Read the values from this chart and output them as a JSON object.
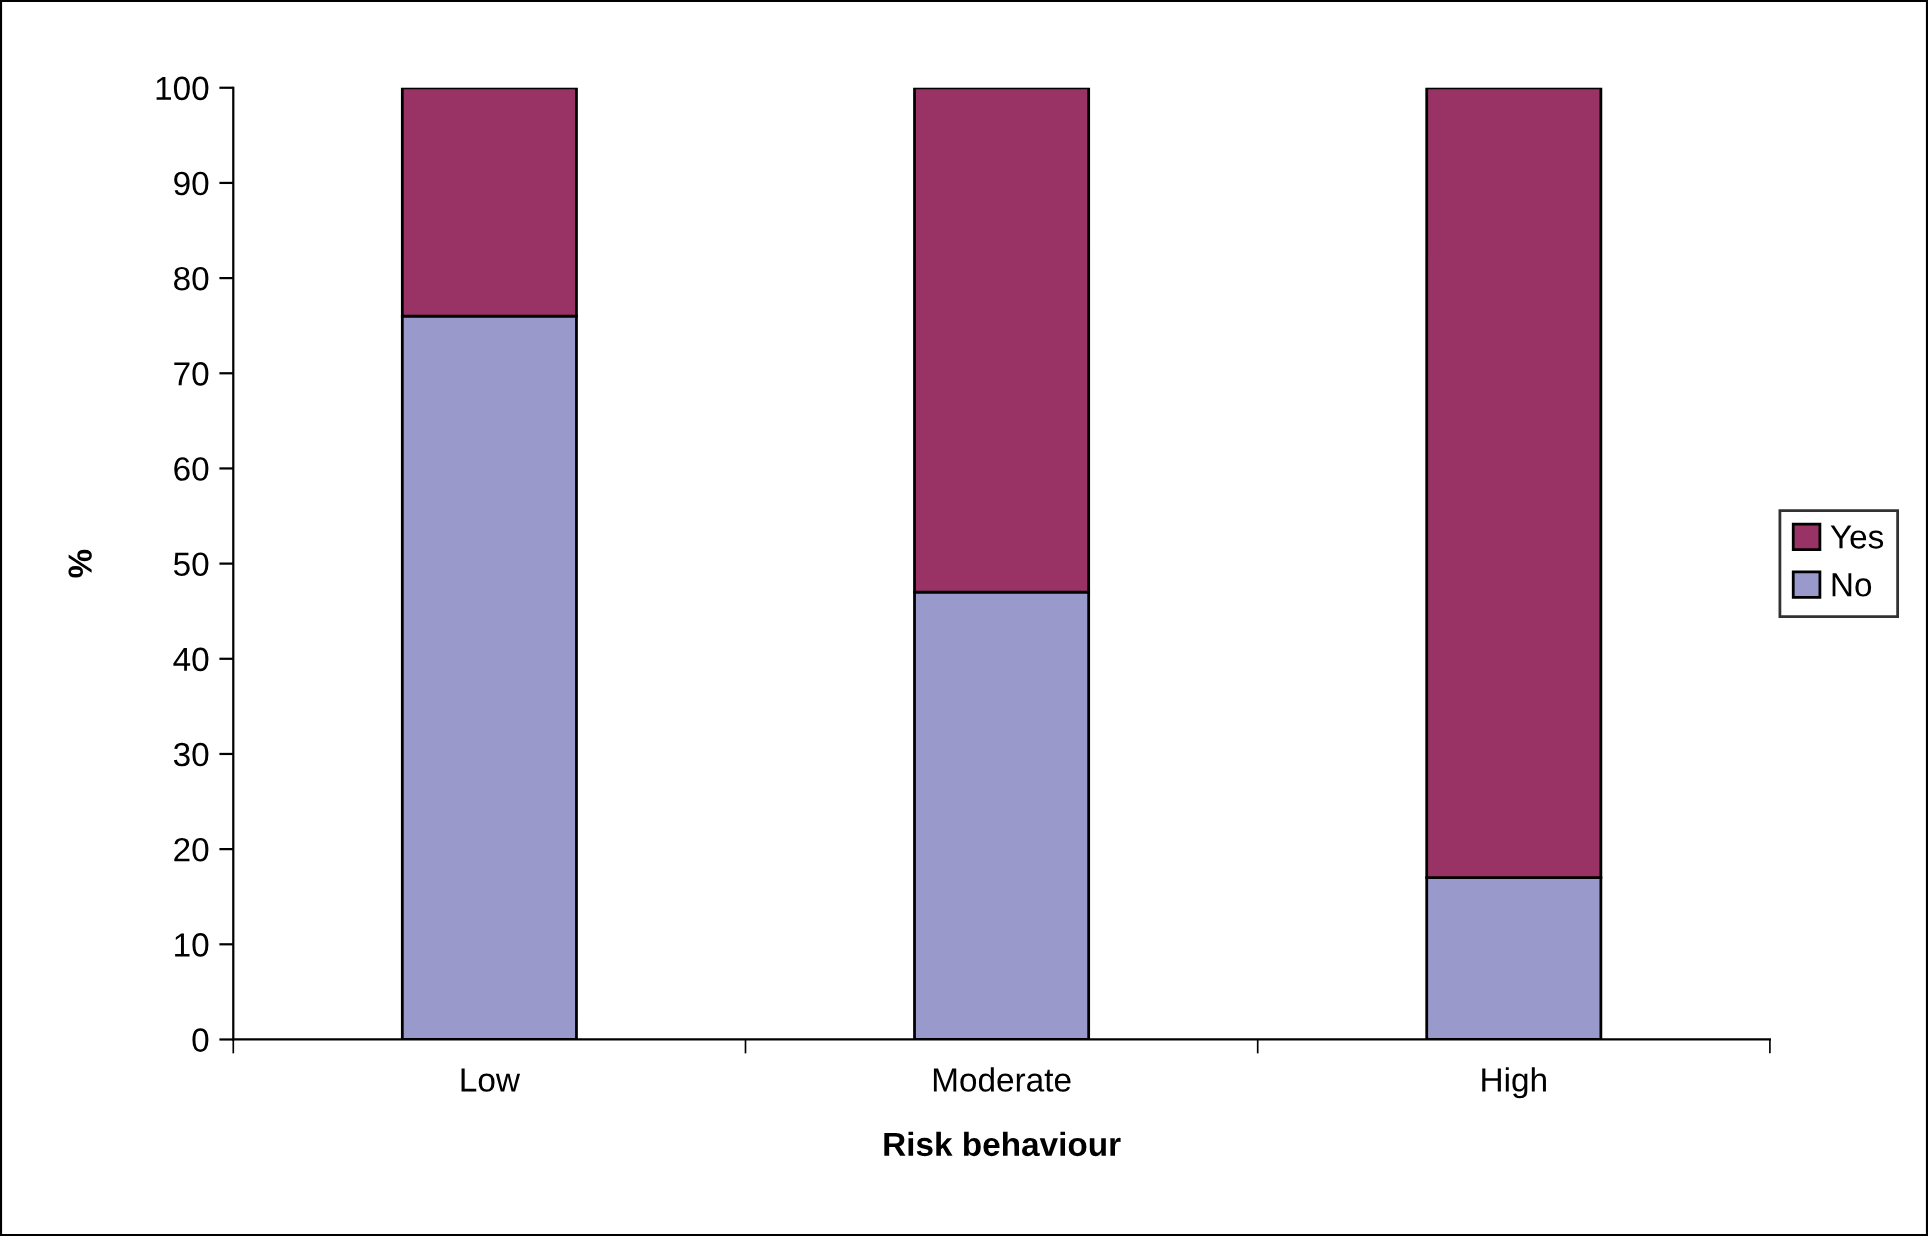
{
  "chart_data": {
    "type": "bar",
    "stacked": true,
    "xlabel": "Risk behaviour",
    "ylabel": "%",
    "categories": [
      "Low",
      "Moderate",
      "High"
    ],
    "series": [
      {
        "name": "No",
        "color": "#9999cc",
        "values": [
          76,
          47,
          17
        ]
      },
      {
        "name": "Yes",
        "color": "#993366",
        "values": [
          24,
          53,
          83
        ]
      }
    ],
    "ylim": [
      0,
      100
    ],
    "yticks": [
      0,
      10,
      20,
      30,
      40,
      50,
      60,
      70,
      80,
      90,
      100
    ],
    "grid": false,
    "legend": "right"
  }
}
